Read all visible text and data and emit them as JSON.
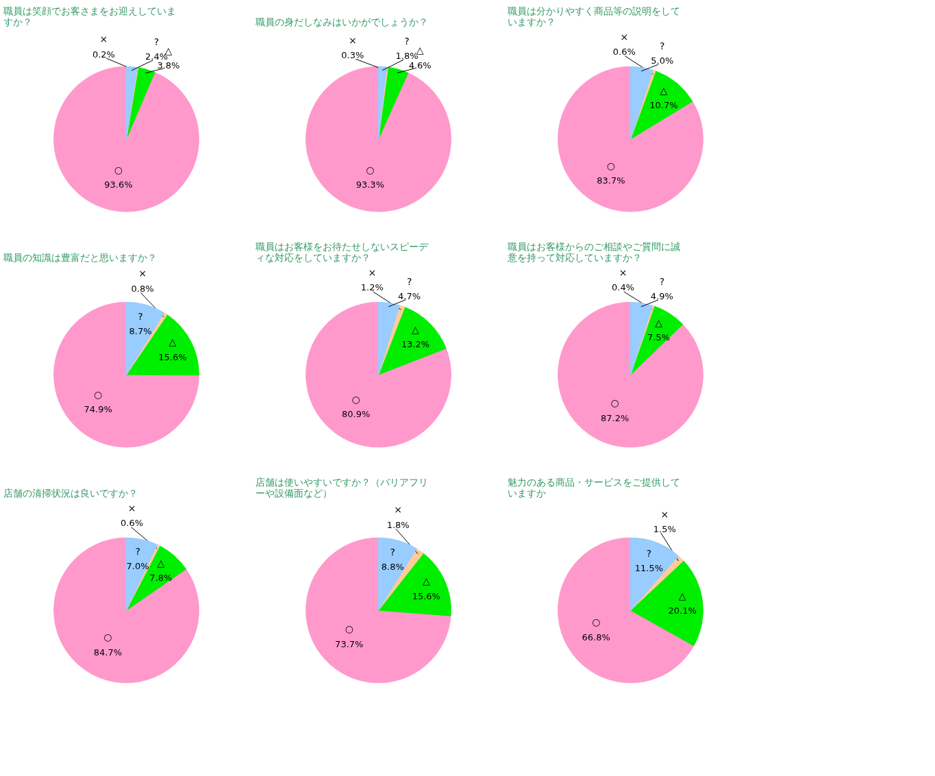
{
  "chart_data": [
    {
      "type": "pie",
      "title": "職員は笑顔でお客さまをお迎えしていますか？",
      "categories": [
        "○",
        "△",
        "×",
        "?"
      ],
      "values": [
        93.6,
        3.8,
        0.2,
        2.4
      ],
      "value_labels": [
        "93.6%",
        "3.8%",
        "0.2%",
        "2.4%"
      ],
      "colors": [
        "#ff99cc",
        "#00ee00",
        "#ffcc99",
        "#99ccff"
      ]
    },
    {
      "type": "pie",
      "title": "職員の身だしなみはいかがでしょうか？",
      "categories": [
        "○",
        "△",
        "×",
        "?"
      ],
      "values": [
        93.3,
        4.6,
        0.3,
        1.8
      ],
      "value_labels": [
        "93.3%",
        "4.6%",
        "0.3%",
        "1.8%"
      ],
      "colors": [
        "#ff99cc",
        "#00ee00",
        "#ffcc99",
        "#99ccff"
      ]
    },
    {
      "type": "pie",
      "title": "職員は分かりやすく商品等の説明をしていますか？",
      "categories": [
        "○",
        "△",
        "×",
        "?"
      ],
      "values": [
        83.7,
        10.7,
        0.6,
        5.0
      ],
      "value_labels": [
        "83.7%",
        "10.7%",
        "0.6%",
        "5.0%"
      ],
      "colors": [
        "#ff99cc",
        "#00ee00",
        "#ffcc99",
        "#99ccff"
      ]
    },
    {
      "type": "pie",
      "title": "職員の知識は豊富だと思いますか？",
      "categories": [
        "○",
        "△",
        "×",
        "?"
      ],
      "values": [
        74.9,
        15.6,
        0.8,
        8.7
      ],
      "value_labels": [
        "74.9%",
        "15.6%",
        "0.8%",
        "8.7%"
      ],
      "colors": [
        "#ff99cc",
        "#00ee00",
        "#ffcc99",
        "#99ccff"
      ]
    },
    {
      "type": "pie",
      "title": "職員はお客様をお待たせしないスピーディな対応をしていますか？",
      "categories": [
        "○",
        "△",
        "×",
        "?"
      ],
      "values": [
        80.9,
        13.2,
        1.2,
        4.7
      ],
      "value_labels": [
        "80.9%",
        "13.2%",
        "1.2%",
        "4.7%"
      ],
      "colors": [
        "#ff99cc",
        "#00ee00",
        "#ffcc99",
        "#99ccff"
      ]
    },
    {
      "type": "pie",
      "title": "職員はお客様からのご相談やご質問に誠意を持って対応していますか？",
      "categories": [
        "○",
        "△",
        "×",
        "?"
      ],
      "values": [
        87.2,
        7.5,
        0.4,
        4.9
      ],
      "value_labels": [
        "87.2%",
        "7.5%",
        "0.4%",
        "4.9%"
      ],
      "colors": [
        "#ff99cc",
        "#00ee00",
        "#ffcc99",
        "#99ccff"
      ]
    },
    {
      "type": "pie",
      "title": "店舗の清掃状況は良いですか？",
      "categories": [
        "○",
        "△",
        "×",
        "?"
      ],
      "values": [
        84.7,
        7.8,
        0.6,
        7.0
      ],
      "value_labels": [
        "84.7%",
        "7.8%",
        "0.6%",
        "7.0%"
      ],
      "colors": [
        "#ff99cc",
        "#00ee00",
        "#ffcc99",
        "#99ccff"
      ]
    },
    {
      "type": "pie",
      "title": "店舗は使いやすいですか？（バリアフリーや設備面など）",
      "categories": [
        "○",
        "△",
        "×",
        "?"
      ],
      "values": [
        73.7,
        15.6,
        1.8,
        8.8
      ],
      "value_labels": [
        "73.7%",
        "15.6%",
        "1.8%",
        "8.8%"
      ],
      "colors": [
        "#ff99cc",
        "#00ee00",
        "#ffcc99",
        "#99ccff"
      ]
    },
    {
      "type": "pie",
      "title": "魅力のある商品・サービスをご提供していますか",
      "categories": [
        "○",
        "△",
        "×",
        "?"
      ],
      "values": [
        66.8,
        20.1,
        1.5,
        11.5
      ],
      "value_labels": [
        "66.8%",
        "20.1%",
        "1.5%",
        "11.5%"
      ],
      "colors": [
        "#ff99cc",
        "#00ee00",
        "#ffcc99",
        "#99ccff"
      ]
    }
  ]
}
